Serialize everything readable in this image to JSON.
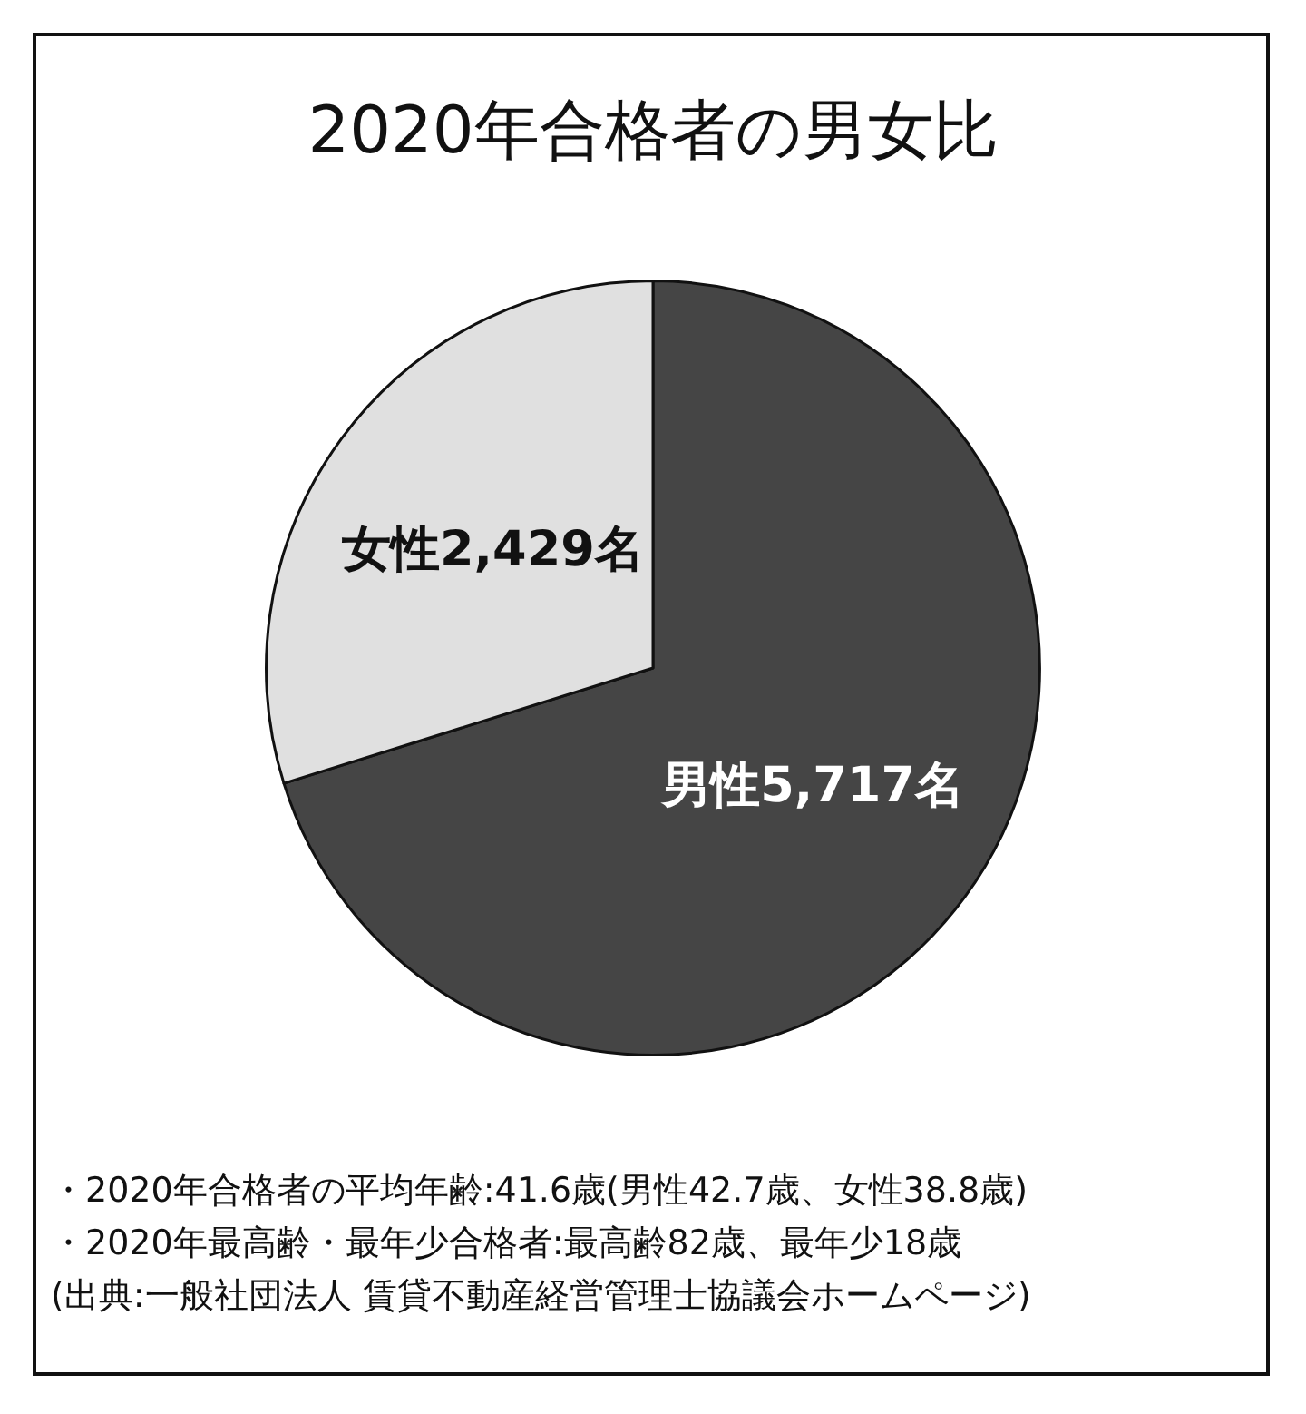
{
  "chart_data": {
    "type": "pie",
    "title": "2020年合格者の男女比",
    "categories": [
      "男性",
      "女性"
    ],
    "values": [
      5717,
      2429
    ],
    "value_labels": [
      "5,717名",
      "2,429名"
    ],
    "colors": [
      "#454545",
      "#e0e0e0"
    ],
    "legend": false,
    "annotations": [
      "・2020年合格者の平均年齢:41.6歳(男性42.7歳、女性38.8歳)",
      "・2020年最高齢・最年少合格者:最高齢82歳、最年少18歳",
      "(出典:一般社団法人 賃貸不動産経営管理士協議会ホームページ)"
    ]
  }
}
